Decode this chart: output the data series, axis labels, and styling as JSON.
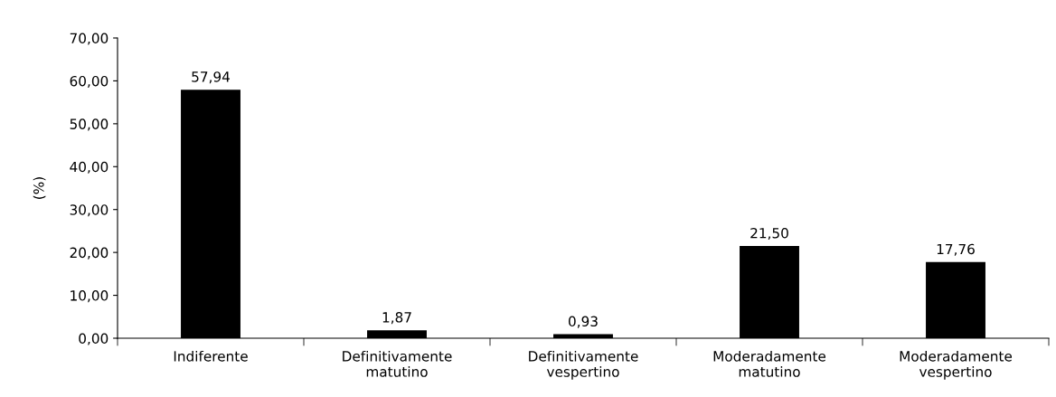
{
  "chart_data": {
    "type": "bar",
    "ylabel": "(%)",
    "categories": [
      "Indiferente",
      "Definitivamente\nmatutino",
      "Definitivamente\nvespertino",
      "Moderadamente\nmatutino",
      "Moderadamente\nvespertino"
    ],
    "values": [
      57.94,
      1.87,
      0.93,
      21.5,
      17.76
    ],
    "value_labels": [
      "57,94",
      "1,87",
      "0,93",
      "21,50",
      "17,76"
    ],
    "color": "#000000",
    "ylim": [
      0,
      70
    ],
    "yticks": [
      {
        "value": 0,
        "label": "0,00"
      },
      {
        "value": 10,
        "label": "10,00"
      },
      {
        "value": 20,
        "label": "20,00"
      },
      {
        "value": 30,
        "label": "30,00"
      },
      {
        "value": 40,
        "label": "40,00"
      },
      {
        "value": 50,
        "label": "50,00"
      },
      {
        "value": 60,
        "label": "60,00"
      },
      {
        "value": 70,
        "label": "70,00"
      }
    ],
    "grid": false,
    "legend": false
  }
}
